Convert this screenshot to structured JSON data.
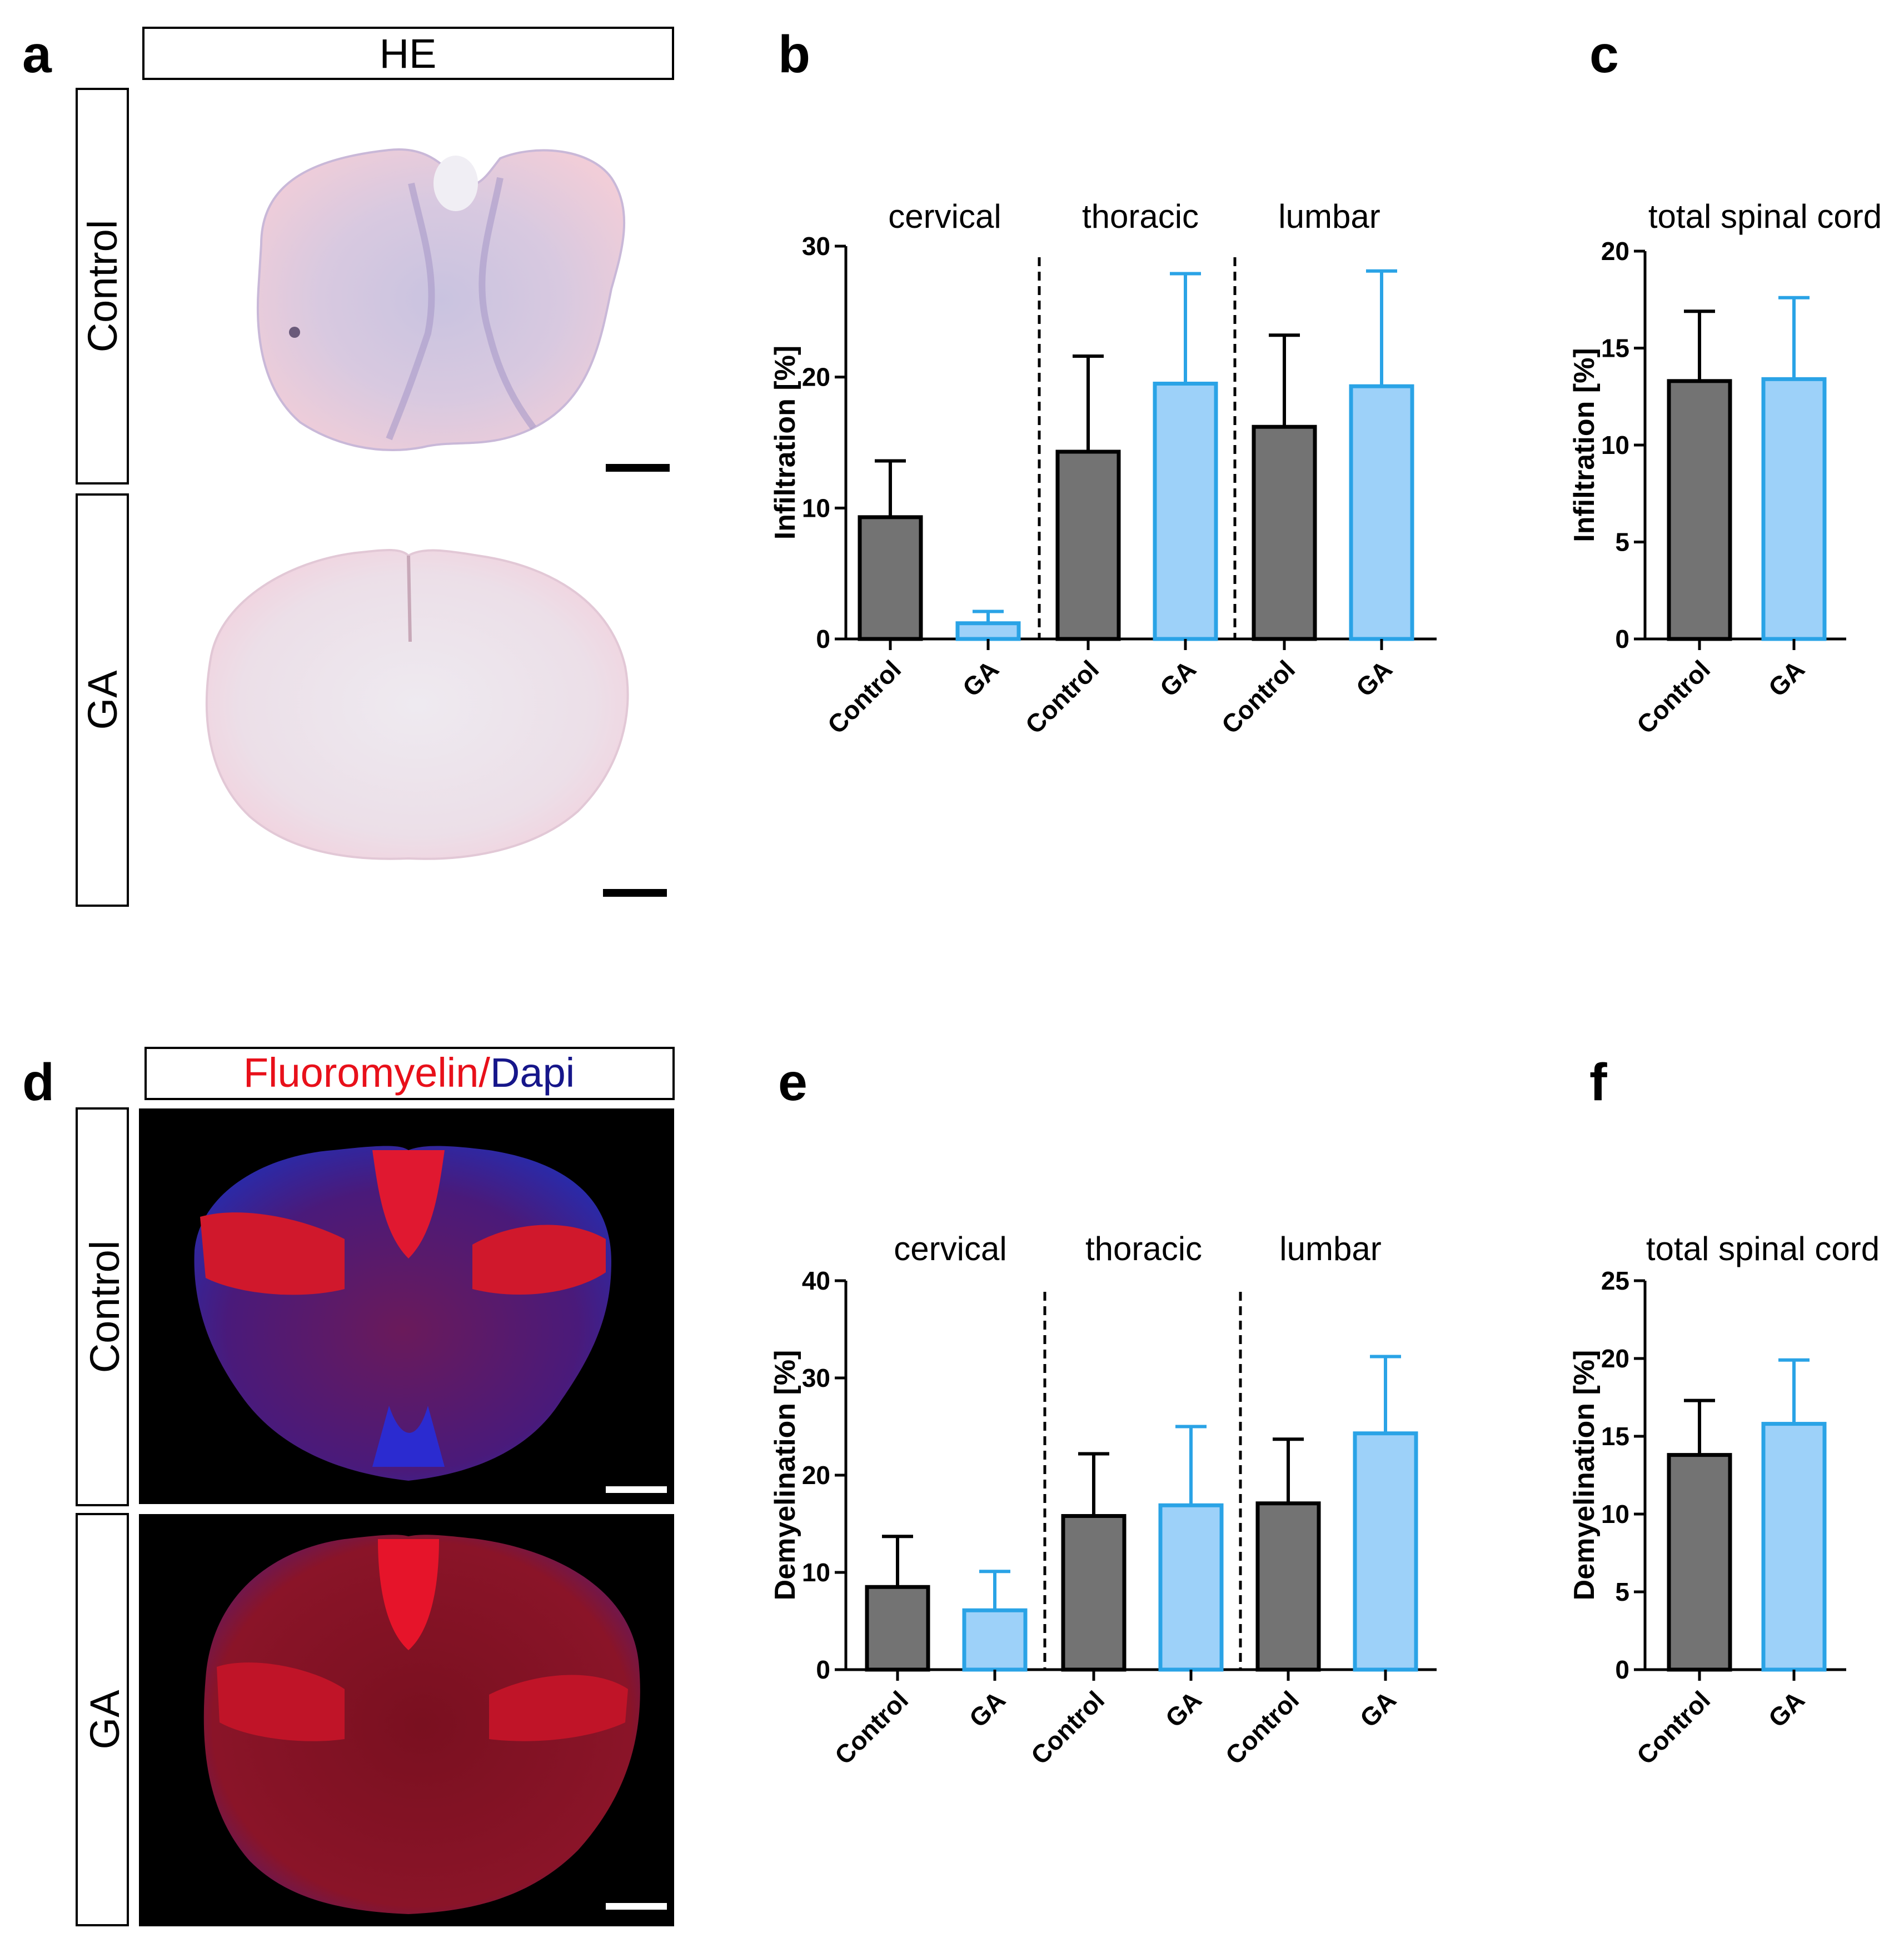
{
  "panels": {
    "a": {
      "letter": "a",
      "header": "HE",
      "row_labels": [
        "Control",
        "GA"
      ]
    },
    "d": {
      "letter": "d",
      "header_red": "Fluoromyelin/",
      "header_blue": "Dapi",
      "row_labels": [
        "Control",
        "GA"
      ]
    },
    "b": {
      "letter": "b"
    },
    "c": {
      "letter": "c"
    },
    "e": {
      "letter": "e"
    },
    "f": {
      "letter": "f"
    }
  },
  "colors": {
    "control_fill": "#737373",
    "ga_fill": "#9dd1f9",
    "ga_stroke": "#2aa3e6",
    "red": "#e8101a",
    "blue": "#16168a"
  },
  "chart_data": [
    {
      "id": "b",
      "type": "bar",
      "title": "",
      "groups": [
        "cervical",
        "thoracic",
        "lumbar"
      ],
      "categories": [
        "Control",
        "GA",
        "Control",
        "GA",
        "Control",
        "GA"
      ],
      "series_by_bar": [
        "Control",
        "GA",
        "Control",
        "GA",
        "Control",
        "GA"
      ],
      "values": [
        9.3,
        1.2,
        14.3,
        19.5,
        16.2,
        19.3
      ],
      "errors": [
        4.3,
        0.9,
        7.3,
        8.4,
        7.0,
        8.8
      ],
      "ylabel": "Infiltration [%]",
      "xlabel": "",
      "ylim": [
        0,
        30
      ],
      "yticks": [
        0,
        10,
        20,
        30
      ]
    },
    {
      "id": "c",
      "type": "bar",
      "title": "total spinal cord",
      "categories": [
        "Control",
        "GA"
      ],
      "series_by_bar": [
        "Control",
        "GA"
      ],
      "values": [
        13.3,
        13.4
      ],
      "errors": [
        3.6,
        4.2
      ],
      "ylabel": "Infiltration [%]",
      "xlabel": "",
      "ylim": [
        0,
        20
      ],
      "yticks": [
        0,
        5,
        10,
        15,
        20
      ]
    },
    {
      "id": "e",
      "type": "bar",
      "title": "",
      "groups": [
        "cervical",
        "thoracic",
        "lumbar"
      ],
      "categories": [
        "Control",
        "GA",
        "Control",
        "GA",
        "Control",
        "GA"
      ],
      "series_by_bar": [
        "Control",
        "GA",
        "Control",
        "GA",
        "Control",
        "GA"
      ],
      "values": [
        8.5,
        6.1,
        15.8,
        16.9,
        17.1,
        24.3
      ],
      "errors": [
        5.2,
        4.0,
        6.4,
        8.1,
        6.6,
        7.9
      ],
      "ylabel": "Demyelination [%]",
      "xlabel": "",
      "ylim": [
        0,
        40
      ],
      "yticks": [
        0,
        10,
        20,
        30,
        40
      ]
    },
    {
      "id": "f",
      "type": "bar",
      "title": "total spinal cord",
      "categories": [
        "Control",
        "GA"
      ],
      "series_by_bar": [
        "Control",
        "GA"
      ],
      "values": [
        13.8,
        15.8
      ],
      "errors": [
        3.5,
        4.1
      ],
      "ylabel": "Demyelination [%]",
      "xlabel": "",
      "ylim": [
        0,
        25
      ],
      "yticks": [
        0,
        5,
        10,
        15,
        20,
        25
      ]
    }
  ]
}
